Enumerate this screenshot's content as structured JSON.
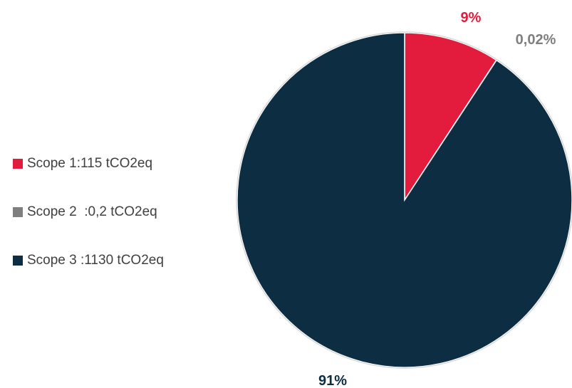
{
  "chart_data": {
    "type": "pie",
    "title": "",
    "slices": [
      {
        "label": "Scope 1:115 tCO2eq",
        "value": 115,
        "percent_label": "9%",
        "color": "#e31c3d",
        "label_color": "#e31c3d"
      },
      {
        "label": "Scope 2  :0,2 tCO2eq",
        "value": 0.2,
        "percent_label": "0,02%",
        "color": "#7f7f7f",
        "label_color": "#7f7f7f"
      },
      {
        "label": "Scope 3 :1130 tCO2eq",
        "value": 1130,
        "percent_label": "91%",
        "color": "#0c2d42",
        "label_color": "#0c2d42"
      }
    ],
    "legend_position": "left",
    "start_angle": "top, clockwise"
  }
}
